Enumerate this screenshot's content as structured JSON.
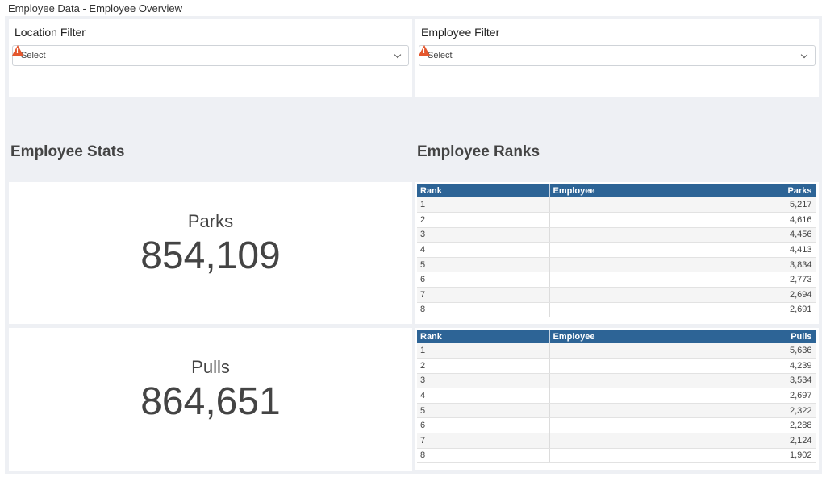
{
  "app": {
    "title": "Employee Data - Employee Overview"
  },
  "filters": {
    "location": {
      "label": "Location Filter",
      "placeholder": "Select"
    },
    "employee": {
      "label": "Employee Filter",
      "placeholder": "Select"
    }
  },
  "stats": {
    "title": "Employee Stats",
    "parks": {
      "label": "Parks",
      "value": "854,109"
    },
    "pulls": {
      "label": "Pulls",
      "value": "864,651"
    }
  },
  "ranks": {
    "title": "Employee Ranks",
    "parks_table": {
      "columns": [
        "Rank",
        "Employee",
        "Parks"
      ],
      "rows": [
        [
          "1",
          "",
          "5,217"
        ],
        [
          "2",
          "",
          "4,616"
        ],
        [
          "3",
          "",
          "4,456"
        ],
        [
          "4",
          "",
          "4,413"
        ],
        [
          "5",
          "",
          "3,834"
        ],
        [
          "6",
          "",
          "2,773"
        ],
        [
          "7",
          "",
          "2,694"
        ],
        [
          "8",
          "",
          "2,691"
        ]
      ]
    },
    "pulls_table": {
      "columns": [
        "Rank",
        "Employee",
        "Pulls"
      ],
      "rows": [
        [
          "1",
          "",
          "5,636"
        ],
        [
          "2",
          "",
          "4,239"
        ],
        [
          "3",
          "",
          "3,534"
        ],
        [
          "4",
          "",
          "2,697"
        ],
        [
          "5",
          "",
          "2,322"
        ],
        [
          "6",
          "",
          "2,288"
        ],
        [
          "7",
          "",
          "2,124"
        ],
        [
          "8",
          "",
          "1,902"
        ]
      ]
    }
  },
  "colors": {
    "header_bg": "#2d6496",
    "canvas_bg": "#eef0f4",
    "warning": "#e4572e"
  }
}
